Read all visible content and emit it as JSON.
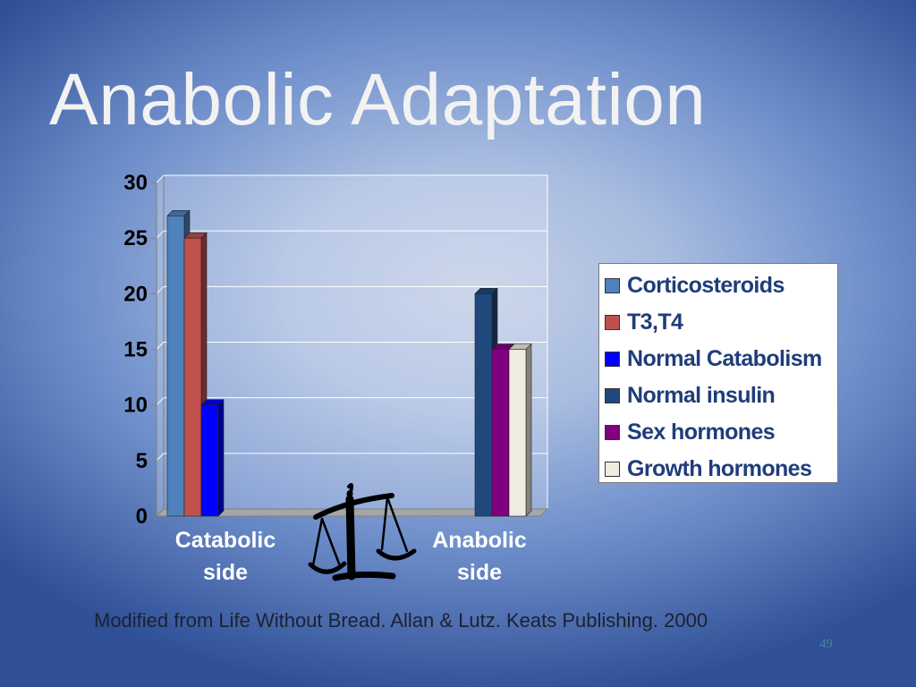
{
  "slide": {
    "title": "Anabolic Adaptation",
    "source": "Modified from Life Without Bread. Allan & Lutz. Keats Publishing. 2000",
    "page_number": "49"
  },
  "chart_data": {
    "type": "bar",
    "title": "",
    "xlabel": "",
    "ylabel": "",
    "ylim": [
      0,
      30
    ],
    "yticks": [
      "0",
      "5",
      "10",
      "15",
      "20",
      "25",
      "30"
    ],
    "categories": [
      "Catabolic side",
      "",
      "Anabolic side"
    ],
    "category_label_lines": [
      [
        "Catabolic",
        "side"
      ],
      [],
      [
        "Anabolic",
        "side"
      ]
    ],
    "grid": true,
    "legend_position": "right",
    "series": [
      {
        "name": "Corticosteroids",
        "color": "#4f81bd",
        "values": [
          27,
          0,
          0
        ]
      },
      {
        "name": "T3,T4",
        "color": "#c0504d",
        "values": [
          25,
          0,
          0
        ]
      },
      {
        "name": "Normal Catabolism",
        "color": "#0000ff",
        "values": [
          10,
          0,
          0
        ]
      },
      {
        "name": "Normal insulin",
        "color": "#1f497d",
        "values": [
          0,
          0,
          20
        ]
      },
      {
        "name": "Sex hormones",
        "color": "#800080",
        "values": [
          0,
          0,
          15
        ]
      },
      {
        "name": "Growth hormones",
        "color": "#eeece1",
        "values": [
          0,
          0,
          15
        ]
      }
    ]
  },
  "icons": {
    "balance_scale": "balance-scale-icon"
  }
}
